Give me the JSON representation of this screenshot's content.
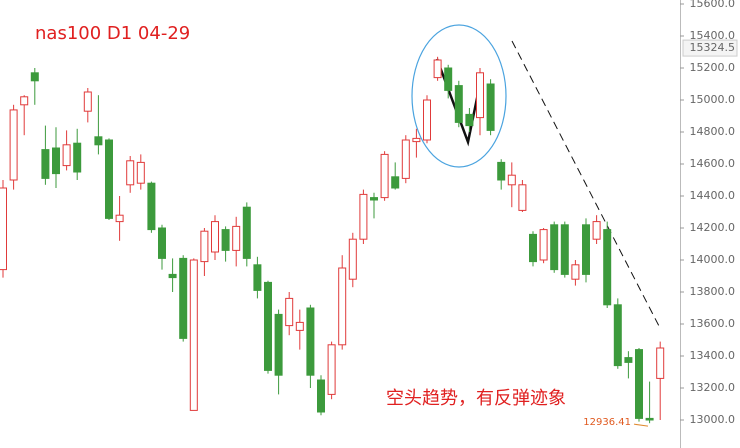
{
  "chart_data": {
    "type": "candlestick",
    "title": "nas100  D1  04-29",
    "annotation": "空头趋势，有反弹迹象",
    "up_color": "#e03a3a",
    "down_color": "#3c9a3c",
    "ylim": [
      12825,
      15625
    ],
    "yticks": [
      {
        "value": 13000,
        "label": "13000.0"
      },
      {
        "value": 13200,
        "label": "13200.0"
      },
      {
        "value": 13400,
        "label": "13400.0"
      },
      {
        "value": 13600,
        "label": "13600.0"
      },
      {
        "value": 13800,
        "label": "13800.0"
      },
      {
        "value": 14000,
        "label": "14000.0"
      },
      {
        "value": 14200,
        "label": "14200.0"
      },
      {
        "value": 14400,
        "label": "14400.0"
      },
      {
        "value": 14600,
        "label": "14600.0"
      },
      {
        "value": 14800,
        "label": "14800.0"
      },
      {
        "value": 15000,
        "label": "15000.0"
      },
      {
        "value": 15200,
        "label": "15200.0"
      },
      {
        "value": 15400,
        "label": "15400.0"
      },
      {
        "value": 15600,
        "label": "15600.0"
      }
    ],
    "marker_price": {
      "value": 15324.5,
      "label": "15324.5"
    },
    "last_price": {
      "value": 12936.41,
      "label": "12936.41"
    },
    "series": [
      {
        "open": [
          13940,
          14500,
          14970,
          15170,
          14690,
          14700,
          14590,
          14730,
          14930,
          14770,
          14750,
          14240,
          14470,
          14480,
          14480,
          14200,
          13910,
          14010,
          13060,
          13990,
          14050,
          14190,
          14060,
          14330,
          13970,
          13860,
          13660,
          13590,
          13560,
          13700,
          13250,
          13160,
          13470,
          13880,
          14130,
          14390,
          14390,
          14520,
          14510,
          14740,
          14750,
          15140,
          15200,
          15090,
          14910,
          14890,
          15100,
          14610,
          14470,
          14310,
          14160,
          14000,
          14220,
          14220,
          13880,
          14220,
          14130,
          14190,
          13720,
          13390,
          13440,
          13010,
          13260
        ],
        "high": [
          14500,
          14970,
          15030,
          15200,
          14840,
          14830,
          14810,
          14820,
          15075,
          15030,
          14760,
          14400,
          14650,
          14660,
          14490,
          14220,
          14010,
          14030,
          14010,
          14200,
          14280,
          14210,
          14270,
          14360,
          14020,
          13870,
          13690,
          13800,
          13690,
          13720,
          13280,
          13490,
          14030,
          14170,
          14440,
          14420,
          14680,
          14610,
          14780,
          14820,
          15030,
          15270,
          15220,
          15120,
          14950,
          15200,
          15130,
          14630,
          14610,
          14500,
          14180,
          14200,
          14240,
          14240,
          14000,
          14260,
          14280,
          14240,
          13760,
          13430,
          13450,
          13240,
          13490
        ],
        "low": [
          13890,
          14440,
          14780,
          14970,
          14470,
          14450,
          14560,
          14500,
          14860,
          14660,
          14250,
          14120,
          14420,
          14440,
          14170,
          13940,
          13800,
          13490,
          13060,
          13900,
          14000,
          13990,
          13960,
          13960,
          13760,
          13290,
          13160,
          13530,
          13440,
          13200,
          13030,
          13130,
          13440,
          13830,
          14100,
          14260,
          14370,
          14440,
          14480,
          14640,
          14730,
          15120,
          15010,
          14830,
          14800,
          14780,
          14780,
          14440,
          14330,
          14300,
          13960,
          13980,
          13920,
          13890,
          13840,
          13860,
          14100,
          13700,
          13320,
          13260,
          12990,
          12980,
          13000
        ],
        "close": [
          14450,
          14938,
          15020,
          15120,
          14510,
          14540,
          14720,
          14550,
          15050,
          14720,
          14260,
          14280,
          14620,
          14610,
          14190,
          14010,
          13890,
          13510,
          14000,
          14180,
          14240,
          14060,
          14210,
          14010,
          13810,
          13310,
          13280,
          13760,
          13610,
          13280,
          13050,
          13470,
          13950,
          14130,
          14410,
          14375,
          14660,
          14450,
          14750,
          14760,
          15000,
          15250,
          15060,
          14860,
          14840,
          15170,
          14810,
          14500,
          14530,
          14470,
          13990,
          14190,
          13940,
          13910,
          13970,
          13910,
          14240,
          13720,
          13340,
          13360,
          13010,
          13000,
          13450
        ]
      }
    ]
  }
}
